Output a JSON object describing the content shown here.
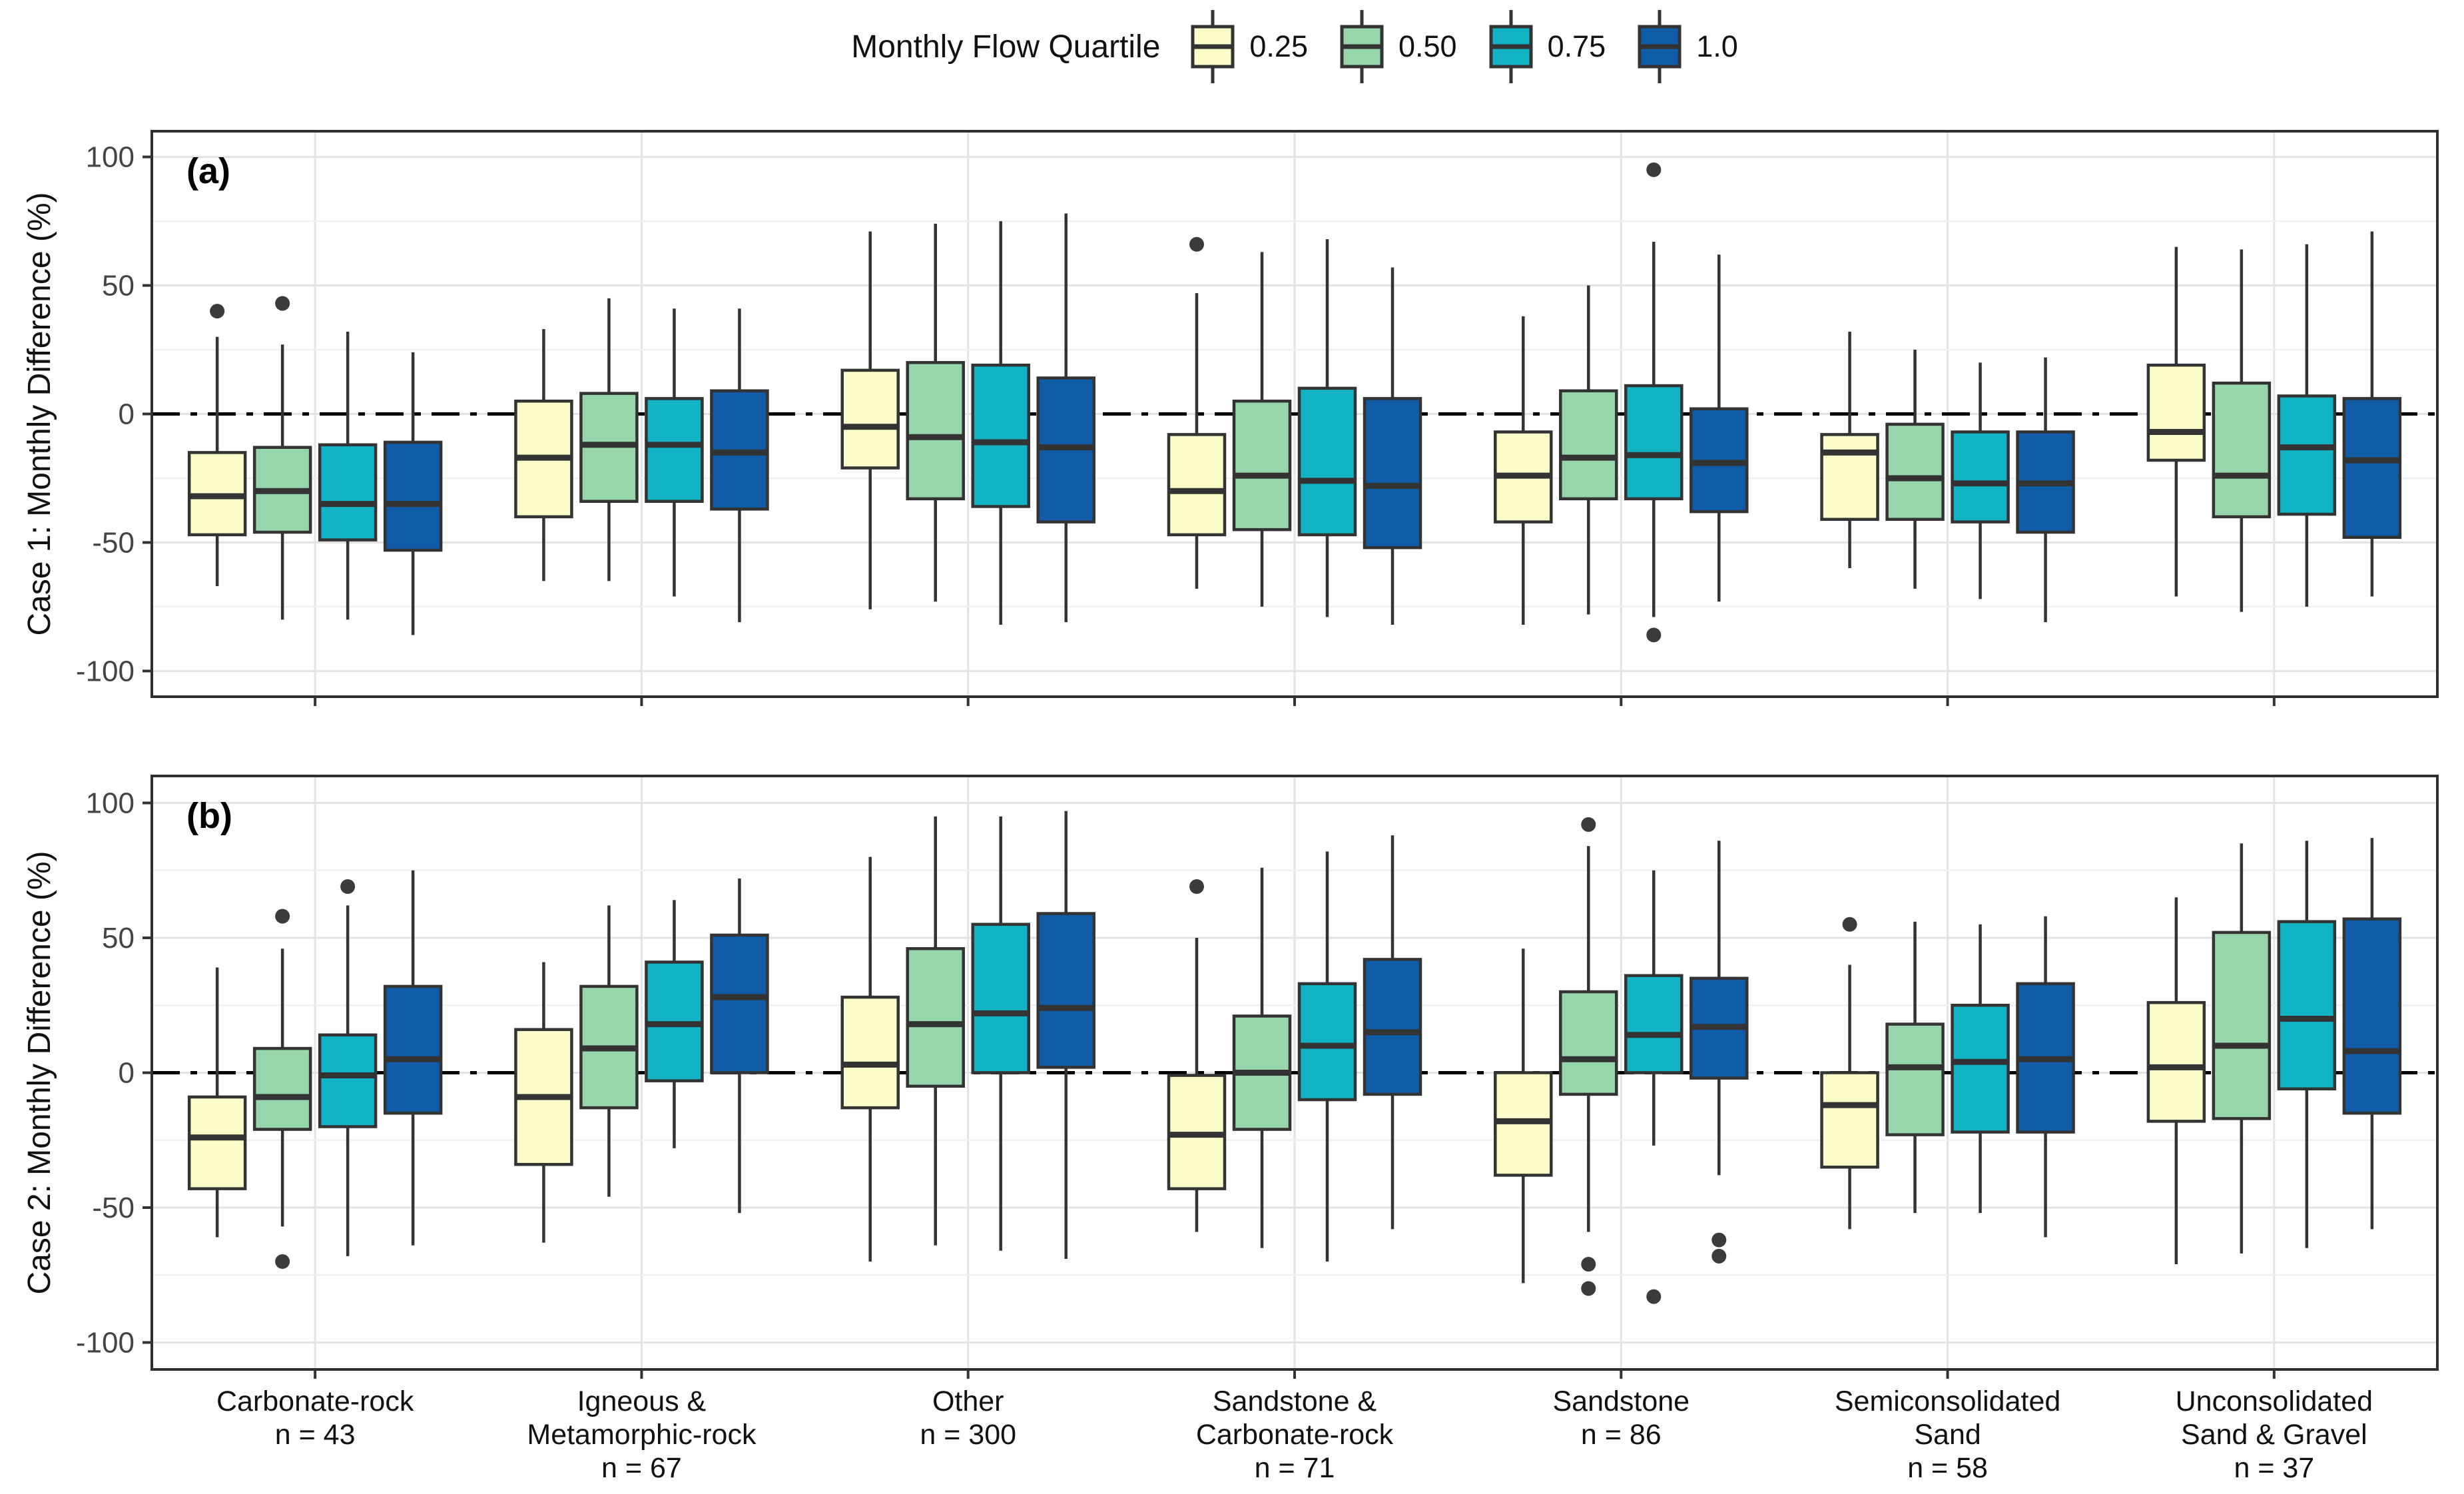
{
  "legend": {
    "title": "Monthly Flow Quartile"
  },
  "chart_data": {
    "type": "boxplot",
    "legend_title": "Monthly Flow Quartile",
    "quartiles": [
      {
        "label": "0.25",
        "color": "#FCFCC9"
      },
      {
        "label": "0.50",
        "color": "#97D5AA"
      },
      {
        "label": "0.75",
        "color": "#11B3C4"
      },
      {
        "label": "1.0",
        "color": "#105CA7"
      }
    ],
    "style": {
      "box_stroke": "#333333",
      "outlier_color": "#3B3B3B",
      "grid_major": "#E3E3E3",
      "grid_minor": "#F0F0F0",
      "panel_border": "#2F2F2F",
      "tick_label_color": "#444444",
      "text_color": "#111111"
    },
    "y_axis": {
      "ticks": [
        100,
        50,
        0,
        -50,
        -100
      ],
      "minor_ticks": [
        75,
        25,
        -25,
        -75
      ],
      "ylim": [
        -110,
        110
      ],
      "zero_line": "dash-dot"
    },
    "categories": [
      {
        "lines": [
          "Carbonate-rock"
        ],
        "n_label": "n = 43"
      },
      {
        "lines": [
          "Igneous &",
          "Metamorphic-rock"
        ],
        "n_label": "n = 67"
      },
      {
        "lines": [
          "Other"
        ],
        "n_label": "n = 300"
      },
      {
        "lines": [
          "Sandstone &",
          "Carbonate-rock"
        ],
        "n_label": "n = 71"
      },
      {
        "lines": [
          "Sandstone"
        ],
        "n_label": "n = 86"
      },
      {
        "lines": [
          "Semiconsolidated",
          "Sand"
        ],
        "n_label": "n = 58"
      },
      {
        "lines": [
          "Unconsolidated",
          "Sand & Gravel"
        ],
        "n_label": "n = 37"
      }
    ],
    "panels": [
      {
        "id": "a",
        "label": "(a)",
        "ylabel": "Case 1: Monthly Difference (%)",
        "groups": [
          [
            {
              "whislo": -67,
              "q1": -47,
              "med": -32,
              "q3": -15,
              "whishi": 30,
              "outliers": [
                40
              ]
            },
            {
              "whislo": -80,
              "q1": -46,
              "med": -30,
              "q3": -13,
              "whishi": 27,
              "outliers": [
                43
              ]
            },
            {
              "whislo": -80,
              "q1": -49,
              "med": -35,
              "q3": -12,
              "whishi": 32,
              "outliers": []
            },
            {
              "whislo": -86,
              "q1": -53,
              "med": -35,
              "q3": -11,
              "whishi": 24,
              "outliers": []
            }
          ],
          [
            {
              "whislo": -65,
              "q1": -40,
              "med": -17,
              "q3": 5,
              "whishi": 33,
              "outliers": []
            },
            {
              "whislo": -65,
              "q1": -34,
              "med": -12,
              "q3": 8,
              "whishi": 45,
              "outliers": []
            },
            {
              "whislo": -71,
              "q1": -34,
              "med": -12,
              "q3": 6,
              "whishi": 41,
              "outliers": []
            },
            {
              "whislo": -81,
              "q1": -37,
              "med": -15,
              "q3": 9,
              "whishi": 41,
              "outliers": []
            }
          ],
          [
            {
              "whislo": -76,
              "q1": -21,
              "med": -5,
              "q3": 17,
              "whishi": 71,
              "outliers": []
            },
            {
              "whislo": -73,
              "q1": -33,
              "med": -9,
              "q3": 20,
              "whishi": 74,
              "outliers": []
            },
            {
              "whislo": -82,
              "q1": -36,
              "med": -11,
              "q3": 19,
              "whishi": 75,
              "outliers": []
            },
            {
              "whislo": -81,
              "q1": -42,
              "med": -13,
              "q3": 14,
              "whishi": 78,
              "outliers": []
            }
          ],
          [
            {
              "whislo": -68,
              "q1": -47,
              "med": -30,
              "q3": -8,
              "whishi": 47,
              "outliers": [
                66
              ]
            },
            {
              "whislo": -75,
              "q1": -45,
              "med": -24,
              "q3": 5,
              "whishi": 63,
              "outliers": []
            },
            {
              "whislo": -79,
              "q1": -47,
              "med": -26,
              "q3": 10,
              "whishi": 68,
              "outliers": []
            },
            {
              "whislo": -82,
              "q1": -52,
              "med": -28,
              "q3": 6,
              "whishi": 57,
              "outliers": []
            }
          ],
          [
            {
              "whislo": -82,
              "q1": -42,
              "med": -24,
              "q3": -7,
              "whishi": 38,
              "outliers": []
            },
            {
              "whislo": -78,
              "q1": -33,
              "med": -17,
              "q3": 9,
              "whishi": 50,
              "outliers": []
            },
            {
              "whislo": -79,
              "q1": -33,
              "med": -16,
              "q3": 11,
              "whishi": 67,
              "outliers": [
                95,
                -86
              ]
            },
            {
              "whislo": -73,
              "q1": -38,
              "med": -19,
              "q3": 2,
              "whishi": 62,
              "outliers": []
            }
          ],
          [
            {
              "whislo": -60,
              "q1": -41,
              "med": -15,
              "q3": -8,
              "whishi": 32,
              "outliers": []
            },
            {
              "whislo": -68,
              "q1": -41,
              "med": -25,
              "q3": -4,
              "whishi": 25,
              "outliers": []
            },
            {
              "whislo": -72,
              "q1": -42,
              "med": -27,
              "q3": -7,
              "whishi": 20,
              "outliers": []
            },
            {
              "whislo": -81,
              "q1": -46,
              "med": -27,
              "q3": -7,
              "whishi": 22,
              "outliers": []
            }
          ],
          [
            {
              "whislo": -71,
              "q1": -18,
              "med": -7,
              "q3": 19,
              "whishi": 65,
              "outliers": []
            },
            {
              "whislo": -77,
              "q1": -40,
              "med": -24,
              "q3": 12,
              "whishi": 64,
              "outliers": []
            },
            {
              "whislo": -75,
              "q1": -39,
              "med": -13,
              "q3": 7,
              "whishi": 66,
              "outliers": []
            },
            {
              "whislo": -71,
              "q1": -48,
              "med": -18,
              "q3": 6,
              "whishi": 71,
              "outliers": []
            }
          ]
        ]
      },
      {
        "id": "b",
        "label": "(b)",
        "ylabel": "Case 2: Monthly Difference (%)",
        "groups": [
          [
            {
              "whislo": -61,
              "q1": -43,
              "med": -24,
              "q3": -9,
              "whishi": 39,
              "outliers": []
            },
            {
              "whislo": -57,
              "q1": -21,
              "med": -9,
              "q3": 9,
              "whishi": 46,
              "outliers": [
                58,
                -70
              ]
            },
            {
              "whislo": -68,
              "q1": -20,
              "med": -1,
              "q3": 14,
              "whishi": 62,
              "outliers": [
                69
              ]
            },
            {
              "whislo": -64,
              "q1": -15,
              "med": 5,
              "q3": 32,
              "whishi": 75,
              "outliers": []
            }
          ],
          [
            {
              "whislo": -63,
              "q1": -34,
              "med": -9,
              "q3": 16,
              "whishi": 41,
              "outliers": []
            },
            {
              "whislo": -46,
              "q1": -13,
              "med": 9,
              "q3": 32,
              "whishi": 62,
              "outliers": []
            },
            {
              "whislo": -28,
              "q1": -3,
              "med": 18,
              "q3": 41,
              "whishi": 64,
              "outliers": []
            },
            {
              "whislo": -52,
              "q1": 0,
              "med": 28,
              "q3": 51,
              "whishi": 72,
              "outliers": []
            }
          ],
          [
            {
              "whislo": -70,
              "q1": -13,
              "med": 3,
              "q3": 28,
              "whishi": 80,
              "outliers": []
            },
            {
              "whislo": -64,
              "q1": -5,
              "med": 18,
              "q3": 46,
              "whishi": 95,
              "outliers": []
            },
            {
              "whislo": -66,
              "q1": 0,
              "med": 22,
              "q3": 55,
              "whishi": 95,
              "outliers": []
            },
            {
              "whislo": -69,
              "q1": 2,
              "med": 24,
              "q3": 59,
              "whishi": 97,
              "outliers": []
            }
          ],
          [
            {
              "whislo": -59,
              "q1": -43,
              "med": -23,
              "q3": -1,
              "whishi": 50,
              "outliers": [
                69
              ]
            },
            {
              "whislo": -65,
              "q1": -21,
              "med": 0,
              "q3": 21,
              "whishi": 76,
              "outliers": []
            },
            {
              "whislo": -70,
              "q1": -10,
              "med": 10,
              "q3": 33,
              "whishi": 82,
              "outliers": []
            },
            {
              "whislo": -58,
              "q1": -8,
              "med": 15,
              "q3": 42,
              "whishi": 88,
              "outliers": []
            }
          ],
          [
            {
              "whislo": -78,
              "q1": -38,
              "med": -18,
              "q3": 0,
              "whishi": 46,
              "outliers": []
            },
            {
              "whislo": -59,
              "q1": -8,
              "med": 5,
              "q3": 30,
              "whishi": 84,
              "outliers": [
                92,
                -71,
                -80
              ]
            },
            {
              "whislo": -27,
              "q1": 0,
              "med": 14,
              "q3": 36,
              "whishi": 75,
              "outliers": [
                -83
              ]
            },
            {
              "whislo": -38,
              "q1": -2,
              "med": 17,
              "q3": 35,
              "whishi": 86,
              "outliers": [
                -62,
                -68
              ]
            }
          ],
          [
            {
              "whislo": -58,
              "q1": -35,
              "med": -12,
              "q3": 0,
              "whishi": 40,
              "outliers": [
                55
              ]
            },
            {
              "whislo": -52,
              "q1": -23,
              "med": 2,
              "q3": 18,
              "whishi": 56,
              "outliers": []
            },
            {
              "whislo": -52,
              "q1": -22,
              "med": 4,
              "q3": 25,
              "whishi": 55,
              "outliers": []
            },
            {
              "whislo": -61,
              "q1": -22,
              "med": 5,
              "q3": 33,
              "whishi": 58,
              "outliers": []
            }
          ],
          [
            {
              "whislo": -71,
              "q1": -18,
              "med": 2,
              "q3": 26,
              "whishi": 65,
              "outliers": []
            },
            {
              "whislo": -67,
              "q1": -17,
              "med": 10,
              "q3": 52,
              "whishi": 85,
              "outliers": []
            },
            {
              "whislo": -65,
              "q1": -6,
              "med": 20,
              "q3": 56,
              "whishi": 86,
              "outliers": []
            },
            {
              "whislo": -58,
              "q1": -15,
              "med": 8,
              "q3": 57,
              "whishi": 87,
              "outliers": []
            }
          ]
        ]
      }
    ]
  }
}
